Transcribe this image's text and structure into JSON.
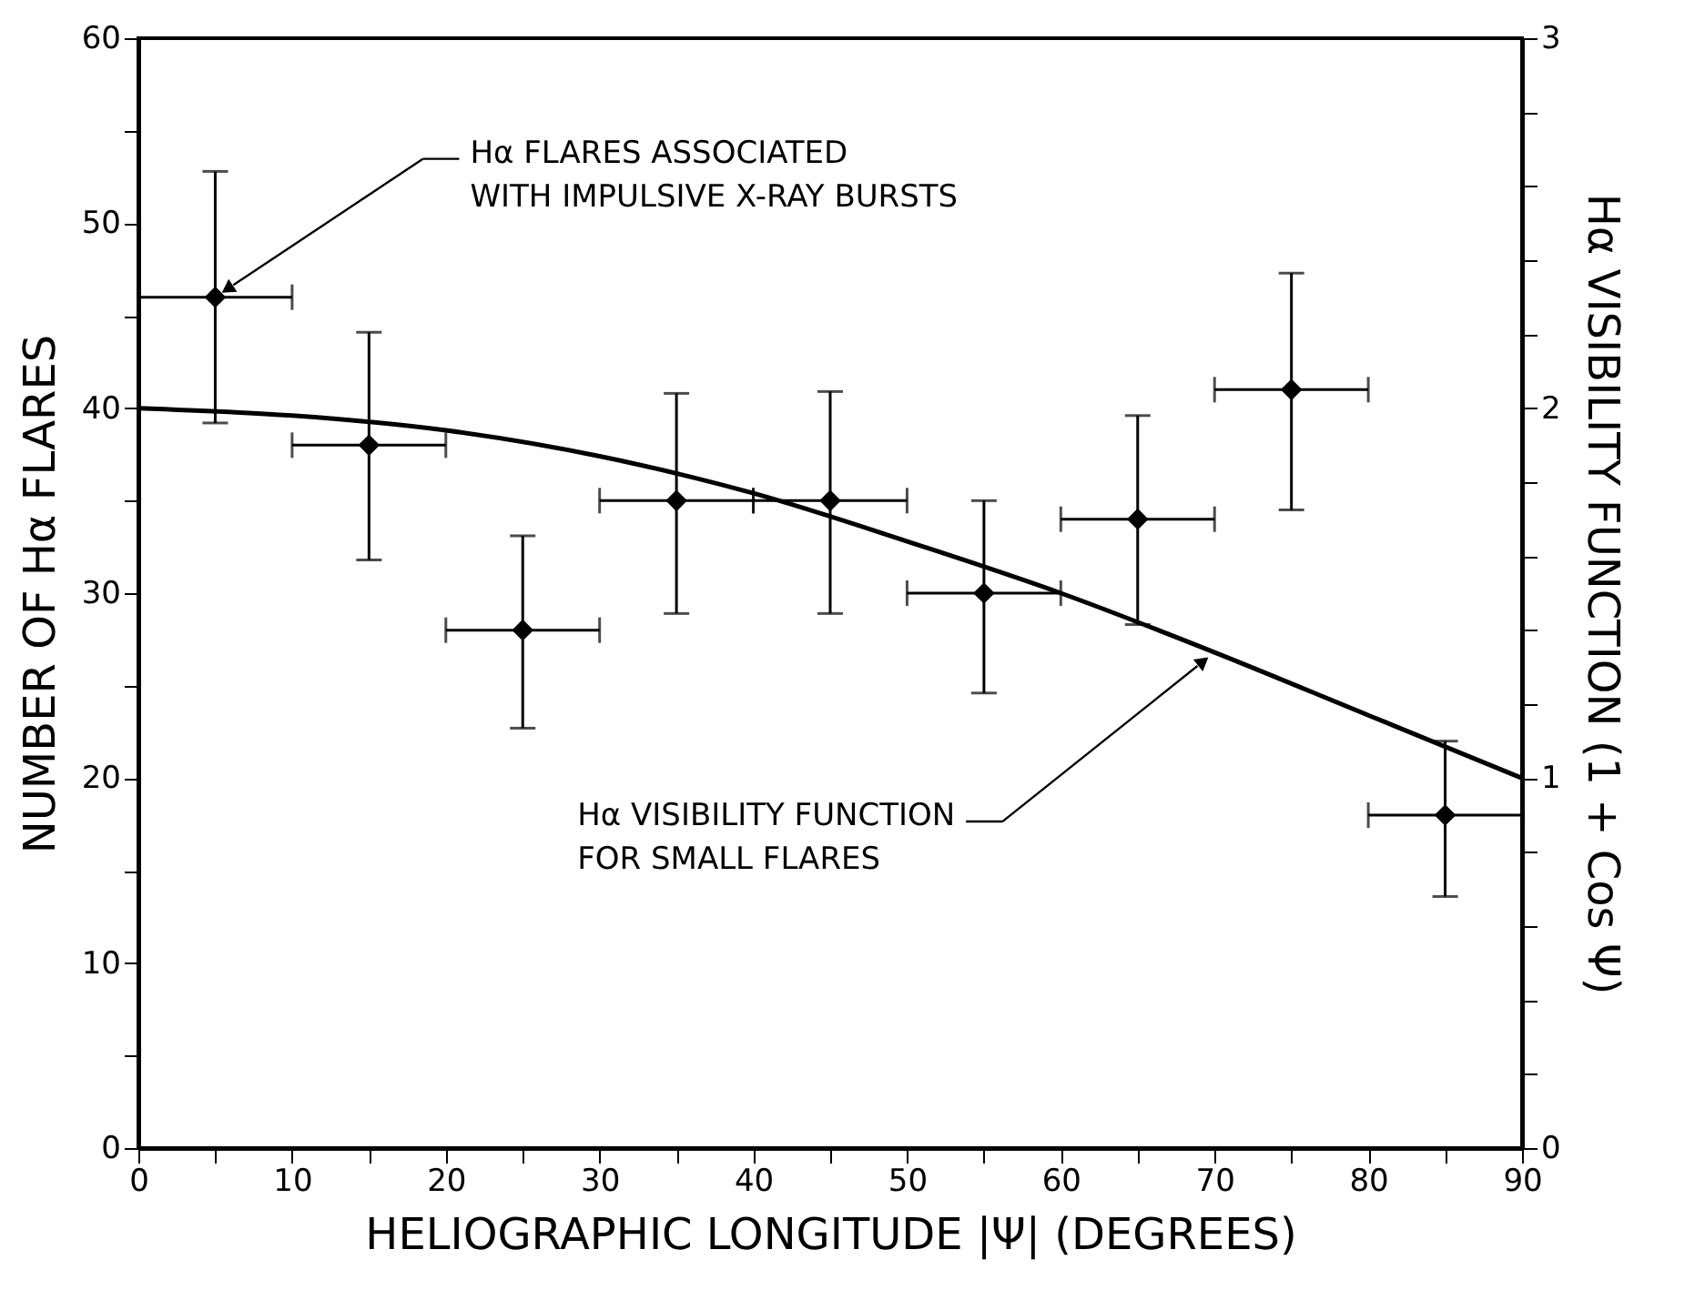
{
  "chart_data": {
    "type": "scatter",
    "xlabel": "HELIOGRAPHIC LONGITUDE |Ψ| (DEGREES)",
    "ylabel": "NUMBER OF Hα FLARES",
    "y2label": "Hα VISIBILITY FUNCTION  (1 + Cos Ψ)",
    "xlim": [
      0,
      90
    ],
    "xticks": [
      0,
      {
        "value": 5,
        "label": null
      },
      10,
      {
        "value": 15,
        "label": null
      },
      20,
      {
        "value": 25,
        "label": null
      },
      30,
      {
        "value": 35,
        "label": null
      },
      40,
      {
        "value": 45,
        "label": null
      },
      50,
      {
        "value": 55,
        "label": null
      },
      60,
      {
        "value": 65,
        "label": null
      },
      70,
      {
        "value": 75,
        "label": null
      },
      80,
      {
        "value": 85,
        "label": null
      },
      90
    ],
    "ylim": [
      0,
      60
    ],
    "yticks": [
      0,
      {
        "value": 5,
        "label": null
      },
      10,
      {
        "value": 15,
        "label": null
      },
      20,
      {
        "value": 25,
        "label": null
      },
      30,
      {
        "value": 35,
        "label": null
      },
      40,
      {
        "value": 45,
        "label": null
      },
      50,
      {
        "value": 55,
        "label": null
      },
      60
    ],
    "y2lim": [
      0,
      3
    ],
    "y2ticks": [
      0,
      {
        "value": 0.2,
        "label": null
      },
      {
        "value": 0.4,
        "label": null
      },
      {
        "value": 0.6,
        "label": null
      },
      {
        "value": 0.8,
        "label": null
      },
      1,
      {
        "value": 1.2,
        "label": null
      },
      {
        "value": 1.4,
        "label": null
      },
      {
        "value": 1.6,
        "label": null
      },
      {
        "value": 1.8,
        "label": null
      },
      2,
      {
        "value": 2.2,
        "label": null
      },
      {
        "value": 2.4,
        "label": null
      },
      {
        "value": 2.6,
        "label": null
      },
      {
        "value": 2.8,
        "label": null
      },
      3
    ],
    "grid": false,
    "series": [
      {
        "color": "#000000",
        "marker": "diamond",
        "x": [
          5,
          15,
          25,
          35,
          45,
          55,
          65,
          75,
          85
        ],
        "values": [
          46,
          38,
          28,
          35,
          35,
          30,
          34,
          41,
          18
        ],
        "errors": [
          [
            39.2,
            52.8
          ],
          [
            31.8,
            44.1
          ],
          [
            22.7,
            33.1
          ],
          [
            28.9,
            40.8
          ],
          [
            28.9,
            40.9
          ],
          [
            24.6,
            35
          ],
          [
            28.3,
            39.6
          ],
          [
            34.5,
            47.3
          ],
          [
            13.6,
            22
          ]
        ],
        "xerrors": [
          5,
          5,
          5,
          5,
          5,
          5,
          5,
          5,
          5
        ]
      },
      {
        "type": "line",
        "axis": "y2",
        "color": "#000000",
        "x": [
          0,
          10,
          20,
          30,
          40,
          50,
          60,
          70,
          80,
          90
        ],
        "values": [
          2,
          1.98,
          1.94,
          1.87,
          1.77,
          1.64,
          1.5,
          1.34,
          1.17,
          1
        ]
      }
    ],
    "annotations": [
      "Hα FLARES ASSOCIATED\nWITH IMPULSIVE X-RAY BURSTS",
      "Hα VISIBILITY FUNCTION\nFOR SMALL FLARES"
    ]
  }
}
